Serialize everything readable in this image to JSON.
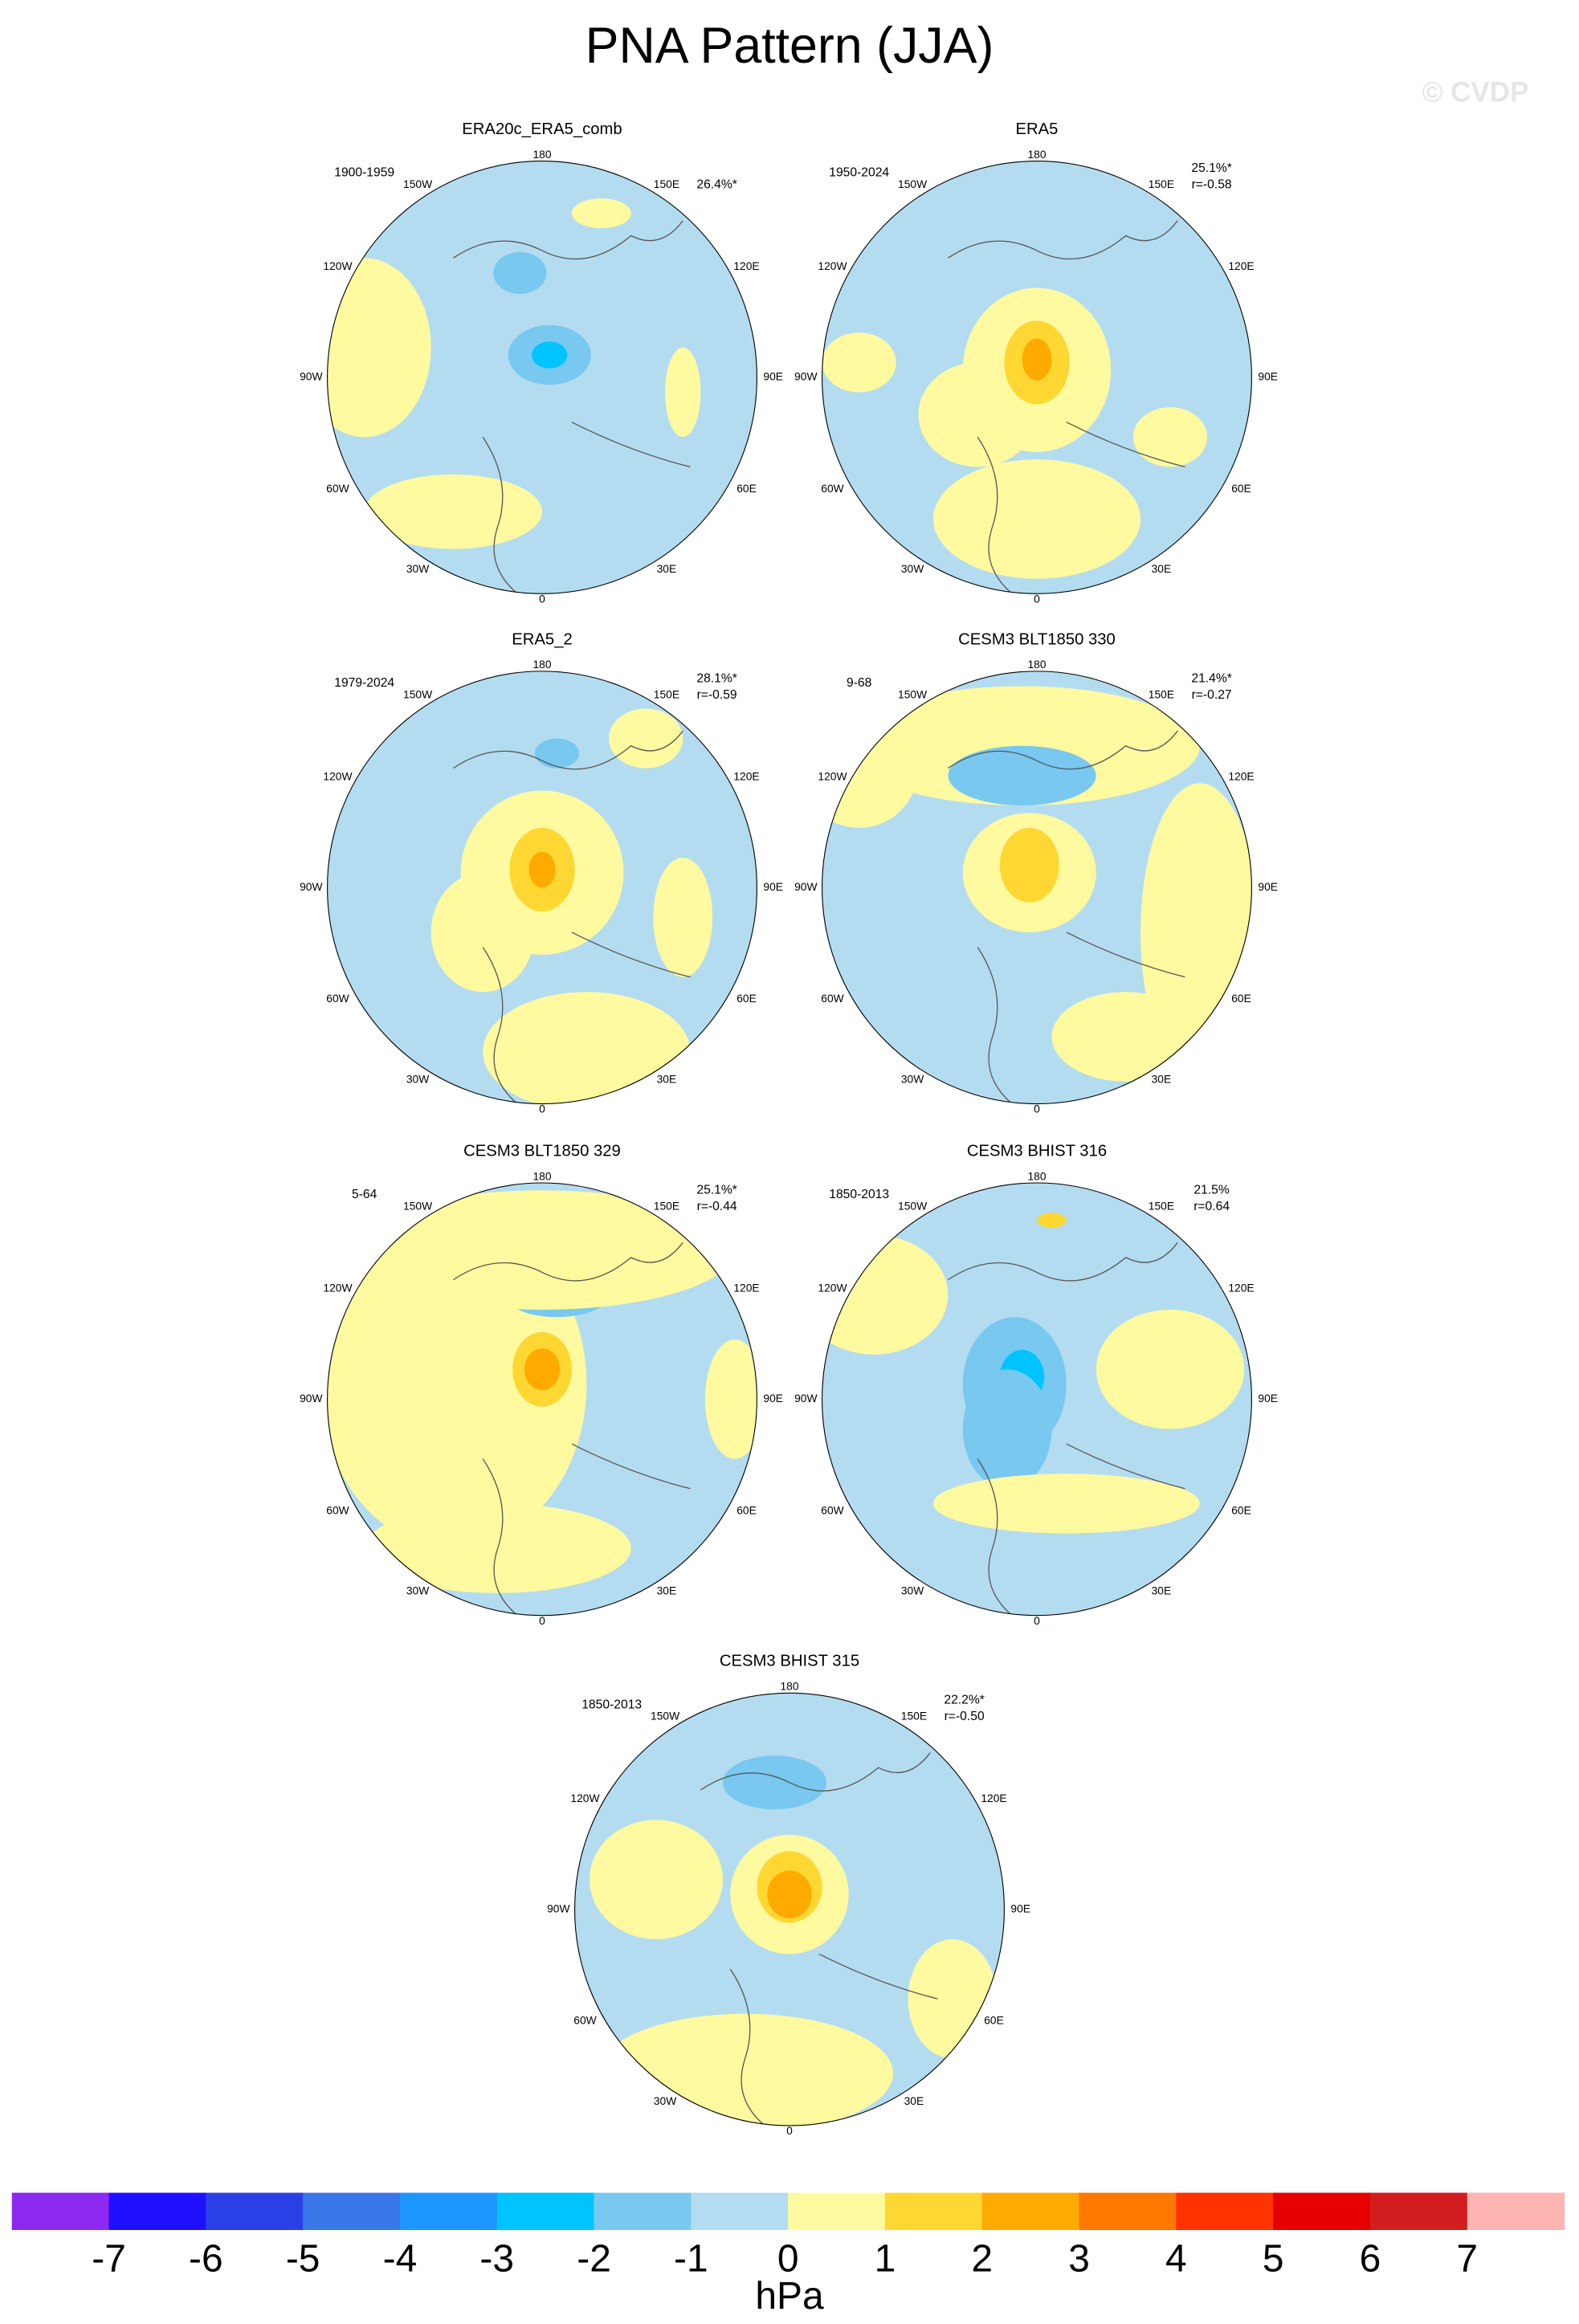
{
  "title": "PNA Pattern (JJA)",
  "watermark": "© CVDP",
  "lon_labels": [
    "180",
    "150W",
    "150E",
    "120W",
    "120E",
    "90W",
    "90E",
    "60W",
    "60E",
    "30W",
    "30E",
    "0"
  ],
  "panels": [
    {
      "title": "ERA20c_ERA5_comb",
      "period": "1900-1959",
      "stat": "26.4%*"
    },
    {
      "title": "ERA5",
      "period": "1950-2024",
      "stat": "25.1%*",
      "corr": "r=-0.58"
    },
    {
      "title": "ERA5_2",
      "period": "1979-2024",
      "stat": "28.1%*",
      "corr": "r=-0.59"
    },
    {
      "title": "CESM3 BLT1850 330",
      "period": "9-68",
      "stat": "21.4%*",
      "corr": "r=-0.27"
    },
    {
      "title": "CESM3 BLT1850 329",
      "period": "5-64",
      "stat": "25.1%*",
      "corr": "r=-0.44"
    },
    {
      "title": "CESM3 BHIST 316",
      "period": "1850-2013",
      "stat": "21.5%",
      "corr": "r=0.64"
    },
    {
      "title": "CESM3 BHIST 315",
      "period": "1850-2013",
      "stat": "22.2%*",
      "corr": "r=-0.50"
    }
  ],
  "colorbar": {
    "ticks": [
      -7,
      -6,
      -5,
      -4,
      -3,
      -2,
      -1,
      0,
      1,
      2,
      3,
      4,
      5,
      6,
      7
    ],
    "colors": [
      "#8c28f0",
      "#1e10ff",
      "#2a40e6",
      "#3a78ea",
      "#1e96ff",
      "#00c4ff",
      "#78c8f0",
      "#b4dcf0",
      "#fffaa0",
      "#ffd732",
      "#ffaa00",
      "#ff7800",
      "#ff3200",
      "#e60000",
      "#d21e1e",
      "#ffb4b4"
    ],
    "label": "hPa"
  }
}
